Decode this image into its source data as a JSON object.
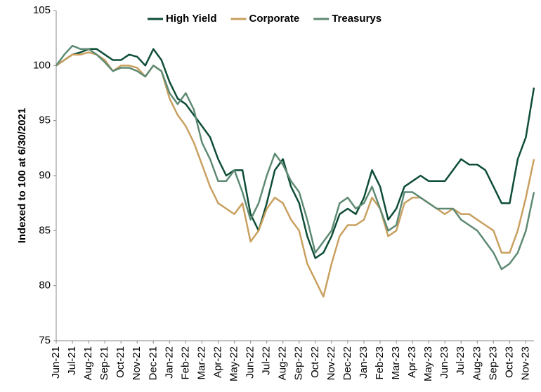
{
  "chart_data": {
    "type": "line",
    "ylabel": "Indexed to 100 at 6/30/2021",
    "categories": [
      "Jun-21",
      null,
      "Jul-21",
      null,
      "Aug-21",
      null,
      "Sep-21",
      null,
      "Oct-21",
      null,
      "Nov-21",
      null,
      "Dec-21",
      null,
      "Jan-22",
      null,
      "Feb-22",
      null,
      "Mar-22",
      null,
      "Apr-22",
      null,
      "May-22",
      null,
      "Jun-22",
      null,
      "Jul-22",
      null,
      "Aug-22",
      null,
      "Sep-22",
      null,
      "Oct-22",
      null,
      "Nov-22",
      null,
      "Dec-22",
      null,
      "Jan-23",
      null,
      "Feb-23",
      null,
      "Mar-23",
      null,
      "Apr-23",
      null,
      "May-23",
      null,
      "Jun-23",
      null,
      "Jul-23",
      null,
      "Aug-23",
      null,
      "Sep-23",
      null,
      "Oct-23",
      null,
      "Nov-23",
      null
    ],
    "series": [
      {
        "name": "High Yield",
        "color": "#0e4d36",
        "values": [
          100,
          100.5,
          101,
          101.2,
          101.5,
          101.5,
          101,
          100.5,
          100.5,
          101,
          100.8,
          100,
          101.5,
          100.5,
          98.5,
          97,
          96.5,
          95.5,
          94.5,
          93.5,
          91.5,
          90,
          90.5,
          90.5,
          86.5,
          85,
          87.5,
          90.5,
          91.5,
          89,
          87.5,
          84.5,
          82.5,
          83,
          84.5,
          86.5,
          87,
          86.5,
          88,
          90.5,
          89,
          86,
          87,
          89,
          89.5,
          90,
          89.5,
          89.5,
          89.5,
          90.5,
          91.5,
          91,
          91,
          90.5,
          89,
          87.5,
          87.5,
          91.5,
          93.5,
          98
        ]
      },
      {
        "name": "Corporate",
        "color": "#c9a060",
        "values": [
          100,
          100.5,
          101,
          101,
          101.2,
          101,
          100.5,
          99.5,
          100,
          100,
          99.8,
          99,
          100,
          99.5,
          97,
          95.5,
          94.5,
          93,
          91,
          89,
          87.5,
          87,
          86.5,
          87.5,
          84,
          85,
          87,
          88,
          87.5,
          86,
          85,
          82,
          80.5,
          79,
          82,
          84.5,
          85.5,
          85.5,
          86,
          88,
          87,
          84.5,
          85,
          87.5,
          88,
          88,
          87.5,
          87,
          86.5,
          87,
          86.5,
          86.5,
          86,
          85.5,
          85,
          83,
          83,
          85,
          88,
          91.5
        ]
      },
      {
        "name": "Treasurys",
        "color": "#5e8a73",
        "values": [
          100,
          101,
          101.8,
          101.5,
          101.5,
          101,
          100.3,
          99.5,
          99.8,
          99.8,
          99.5,
          99,
          100,
          99.5,
          97.5,
          96.5,
          97.5,
          96,
          93,
          91.5,
          89.5,
          89.5,
          90.5,
          88.5,
          86,
          87.5,
          90,
          92,
          91,
          89.5,
          88.5,
          86,
          83,
          84,
          85,
          87.5,
          88,
          87,
          87.5,
          89,
          87,
          85,
          85.5,
          88.5,
          88.5,
          88,
          87.5,
          87,
          87,
          87,
          86,
          85.5,
          85,
          84,
          83,
          81.5,
          82,
          83,
          85,
          88.5
        ]
      }
    ],
    "ylim": [
      75,
      105
    ],
    "yticks": [
      75,
      80,
      85,
      90,
      95,
      100,
      105
    ],
    "legend": "top"
  }
}
